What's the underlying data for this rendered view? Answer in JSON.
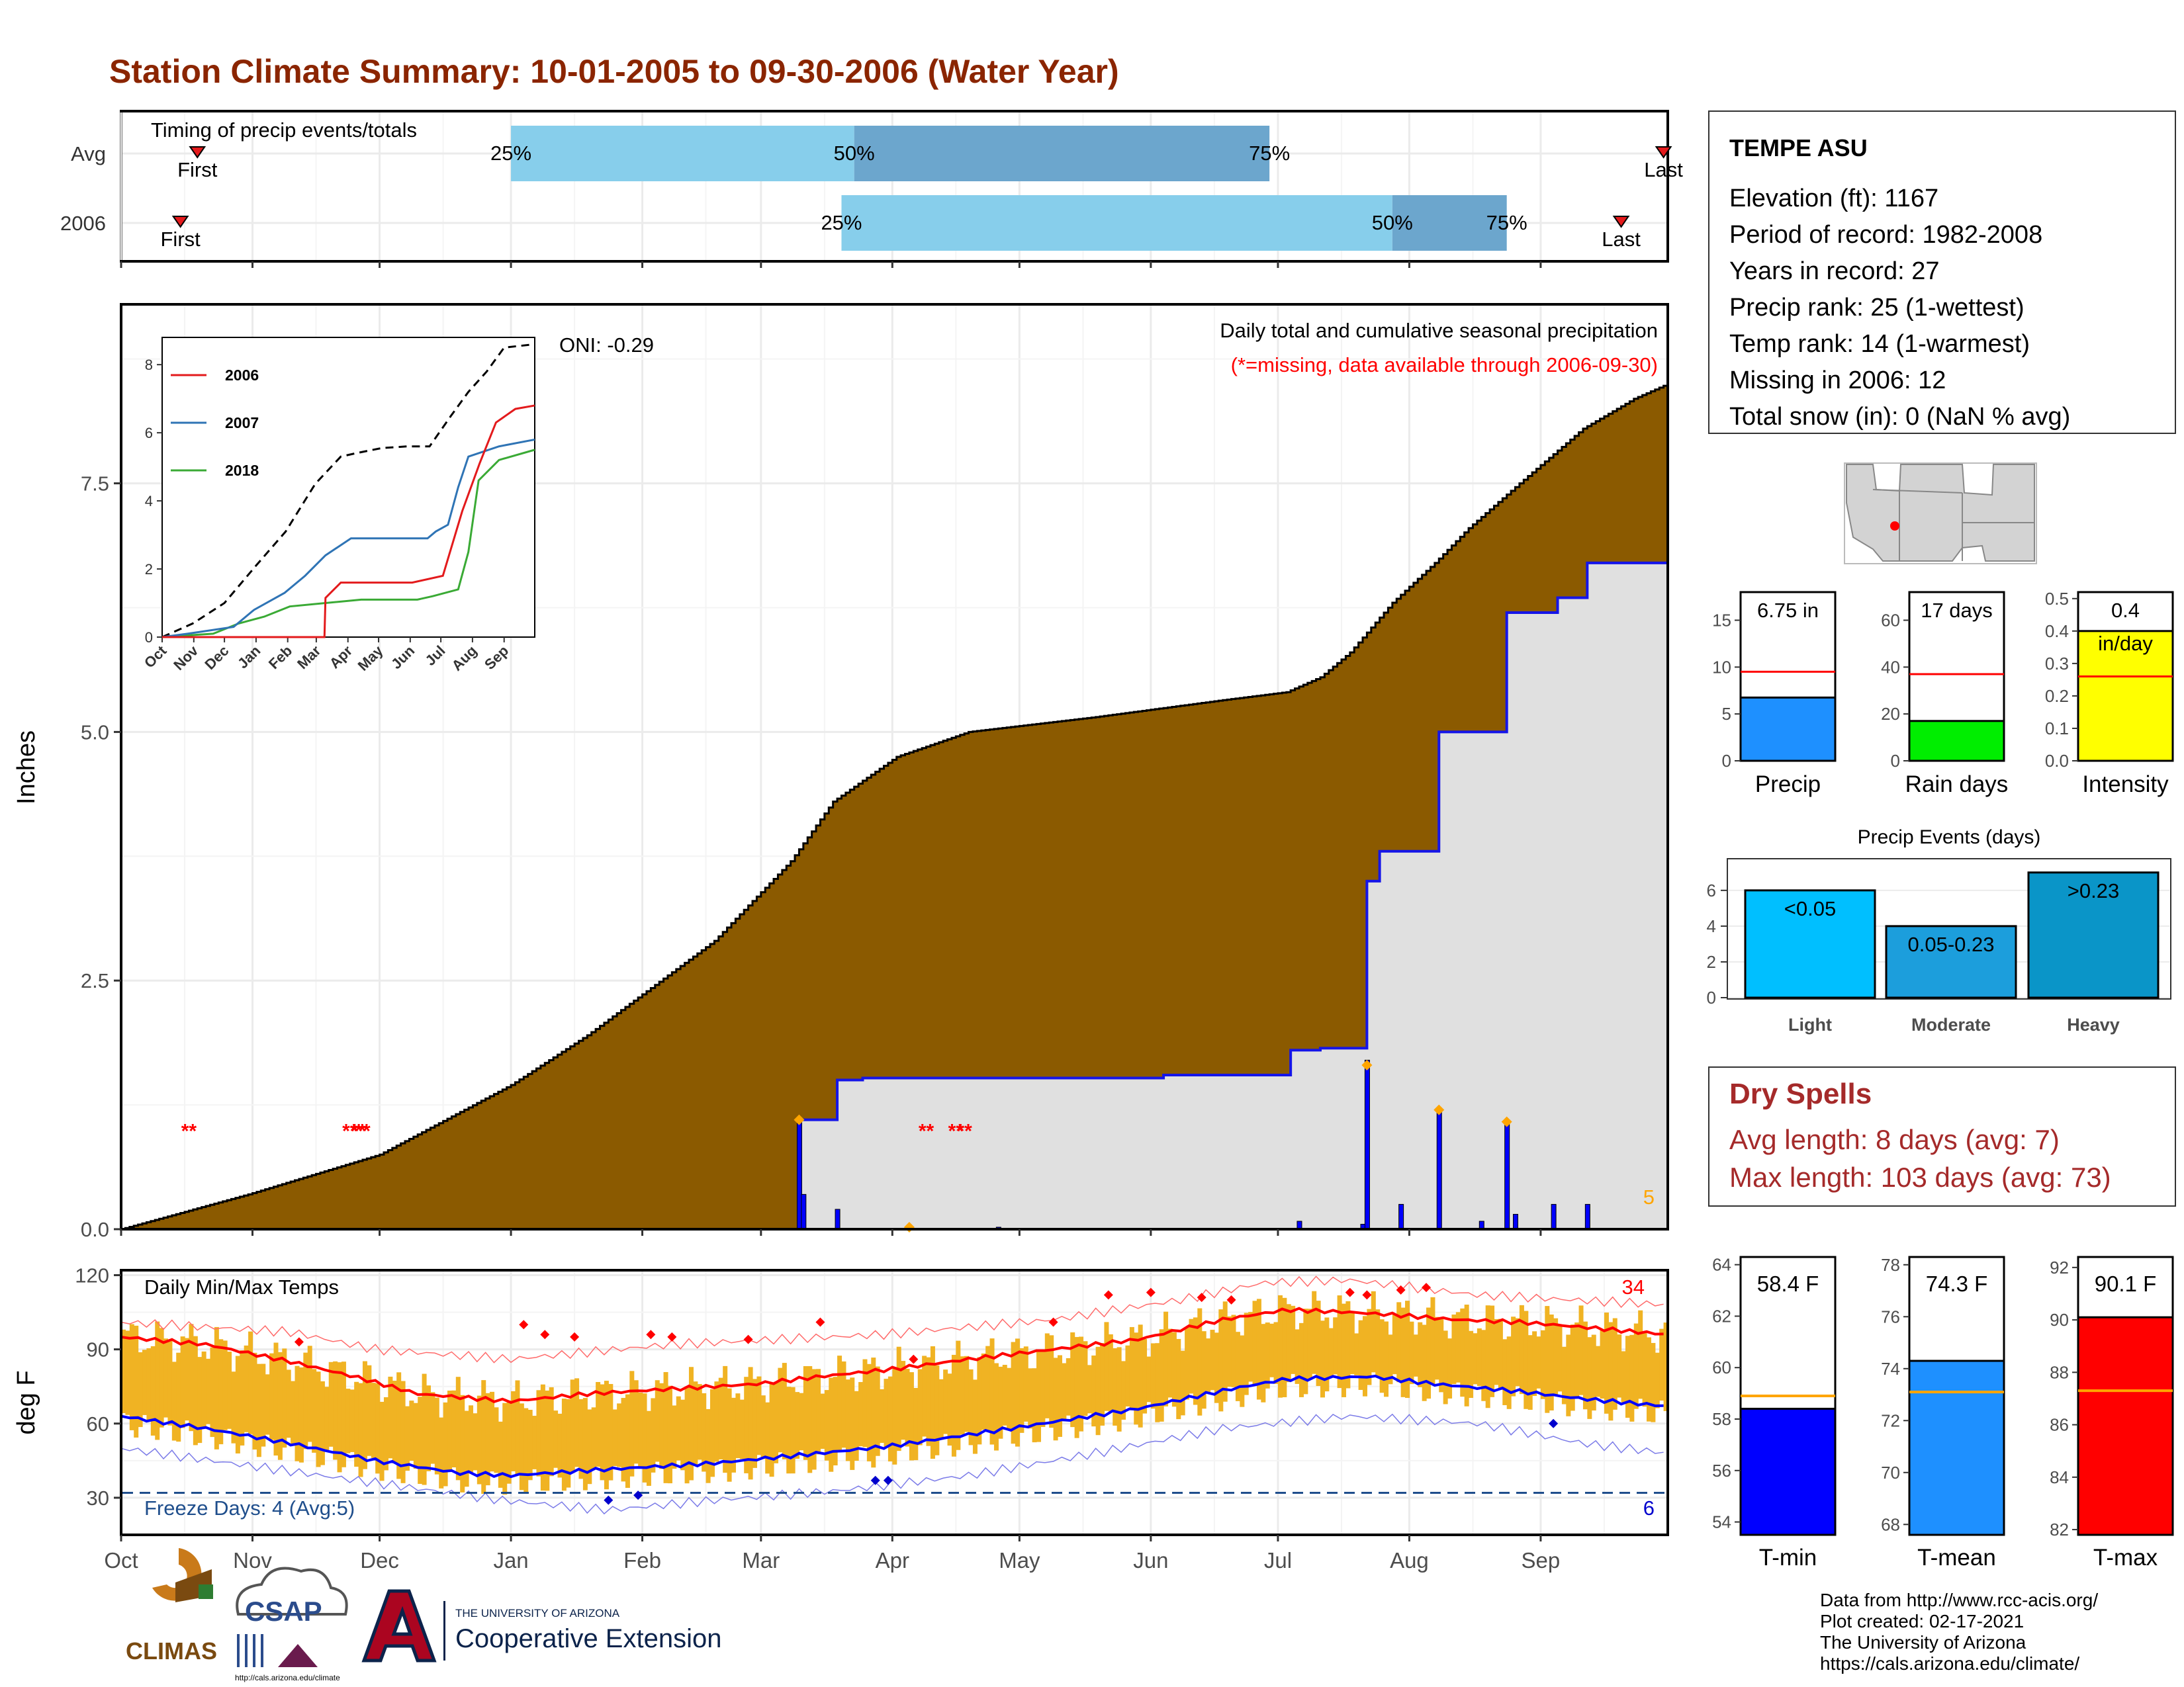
{
  "title": "Station Climate Summary: 10-01-2005 to 09-30-2006 (Water Year)",
  "colors": {
    "title": "#8B2500",
    "cumulative": "#8B5A00",
    "avg_fill": "#E0E0E0",
    "avg_line": "#1515E8",
    "warm": "#F0B323",
    "dry": "#A52A2A",
    "oni": "#000000"
  },
  "months": [
    "Oct",
    "Nov",
    "Dec",
    "Jan",
    "Feb",
    "Mar",
    "Apr",
    "May",
    "Jun",
    "Jul",
    "Aug",
    "Sep"
  ],
  "timing": {
    "title": "Timing of precip events/totals",
    "rows": [
      {
        "label": "Avg",
        "first_day": 18,
        "p25_day": 92,
        "p50_day": 173,
        "p75_day": 271,
        "last_day": 364,
        "first_label": "First",
        "last_label": "Last",
        "p25_label": "25%",
        "p50_label": "50%",
        "p75_label": "75%"
      },
      {
        "label": "2006",
        "first_day": 14,
        "p25_day": 170,
        "p50_day": 300,
        "p75_day": 327,
        "last_day": 354,
        "first_label": "First",
        "last_label": "Last",
        "p25_label": "25%",
        "p50_label": "50%",
        "p75_label": "75%"
      }
    ]
  },
  "station": {
    "name": "TEMPE ASU",
    "lines": [
      "Elevation (ft): 1167",
      "Period of record: 1982-2008",
      "Years in record: 27",
      "Precip rank: 25 (1-wettest)",
      "Temp rank: 14 (1-warmest)",
      "Missing in 2006: 12",
      "Total snow (in): 0 (NaN % avg)"
    ]
  },
  "precip": {
    "ylabel": "Inches",
    "header": "Daily total and cumulative seasonal precipitation",
    "missing_note": "(*=missing, data available through 2006-09-30)",
    "oni": "ONI: -0.29",
    "corner_count": "5",
    "ylim": [
      0,
      9.3
    ],
    "yticks": [
      "0.0",
      "2.5",
      "5.0",
      "7.5"
    ],
    "avg_cumulative": [
      [
        0,
        0.0
      ],
      [
        30,
        0.35
      ],
      [
        61,
        0.75
      ],
      [
        92,
        1.45
      ],
      [
        110,
        1.95
      ],
      [
        140,
        2.9
      ],
      [
        158,
        3.7
      ],
      [
        168,
        4.3
      ],
      [
        183,
        4.75
      ],
      [
        200,
        5.0
      ],
      [
        230,
        5.15
      ],
      [
        260,
        5.32
      ],
      [
        275,
        5.4
      ],
      [
        283,
        5.55
      ],
      [
        290,
        5.8
      ],
      [
        300,
        6.3
      ],
      [
        310,
        6.7
      ],
      [
        318,
        7.05
      ],
      [
        330,
        7.5
      ],
      [
        345,
        8.05
      ],
      [
        357,
        8.35
      ],
      [
        365,
        8.5
      ]
    ],
    "cum_2006": [
      [
        0,
        0
      ],
      [
        159,
        0
      ],
      [
        160,
        1.1
      ],
      [
        169,
        1.5
      ],
      [
        175,
        1.52
      ],
      [
        245,
        1.52
      ],
      [
        246,
        1.55
      ],
      [
        275,
        1.55
      ],
      [
        276,
        1.8
      ],
      [
        282,
        1.8
      ],
      [
        283,
        1.82
      ],
      [
        293,
        1.82
      ],
      [
        294,
        3.5
      ],
      [
        297,
        3.8
      ],
      [
        310,
        3.8
      ],
      [
        311,
        5.0
      ],
      [
        326,
        5.0
      ],
      [
        327,
        6.2
      ],
      [
        338,
        6.2
      ],
      [
        339,
        6.35
      ],
      [
        345,
        6.35
      ],
      [
        346,
        6.7
      ],
      [
        365,
        6.7
      ]
    ],
    "daily_bars": [
      [
        160,
        1.1
      ],
      [
        161,
        0.35
      ],
      [
        169,
        0.2
      ],
      [
        207,
        0.02
      ],
      [
        278,
        0.08
      ],
      [
        293,
        0.05
      ],
      [
        294,
        1.7
      ],
      [
        302,
        0.25
      ],
      [
        311,
        1.2
      ],
      [
        321,
        0.08
      ],
      [
        327,
        1.1
      ],
      [
        329,
        0.15
      ],
      [
        338,
        0.25
      ],
      [
        346,
        0.25
      ]
    ],
    "event_markers": [
      [
        160,
        1.1
      ],
      [
        186,
        0.02
      ],
      [
        294,
        1.65
      ],
      [
        311,
        1.2
      ],
      [
        327,
        1.08
      ]
    ],
    "missing_marks": [
      [
        16,
        1.0
      ],
      [
        54,
        1.0
      ],
      [
        56,
        1.0
      ],
      [
        57,
        1.0
      ],
      [
        190,
        1.0
      ],
      [
        197,
        1.0
      ],
      [
        199,
        1.0
      ]
    ]
  },
  "inset": {
    "yticks": [
      "0",
      "2",
      "4",
      "6",
      "8"
    ],
    "xticks": [
      "Oct",
      "Nov",
      "Dec",
      "Jan",
      "Feb",
      "Mar",
      "Apr",
      "May",
      "Jun",
      "Jul",
      "Aug",
      "Sep"
    ],
    "legend": [
      "2006",
      "2007",
      "2018"
    ],
    "colors": [
      "#E31A1C",
      "#2F74B5",
      "#3AAA35"
    ],
    "series": {
      "avg": [
        [
          0,
          0
        ],
        [
          30,
          0.4
        ],
        [
          61,
          1.0
        ],
        [
          92,
          2.1
        ],
        [
          121,
          3.1
        ],
        [
          150,
          4.5
        ],
        [
          175,
          5.3
        ],
        [
          190,
          5.4
        ],
        [
          215,
          5.55
        ],
        [
          240,
          5.6
        ],
        [
          262,
          5.6
        ],
        [
          283,
          6.5
        ],
        [
          300,
          7.2
        ],
        [
          318,
          7.8
        ],
        [
          335,
          8.5
        ],
        [
          365,
          8.6
        ]
      ],
      "2006": [
        [
          0,
          0
        ],
        [
          159,
          0
        ],
        [
          160,
          1.15
        ],
        [
          175,
          1.6
        ],
        [
          245,
          1.6
        ],
        [
          275,
          1.8
        ],
        [
          294,
          3.7
        ],
        [
          311,
          5.1
        ],
        [
          327,
          6.3
        ],
        [
          346,
          6.7
        ],
        [
          365,
          6.8
        ]
      ],
      "2007": [
        [
          0,
          0
        ],
        [
          25,
          0.1
        ],
        [
          70,
          0.3
        ],
        [
          90,
          0.8
        ],
        [
          120,
          1.3
        ],
        [
          140,
          1.8
        ],
        [
          160,
          2.4
        ],
        [
          185,
          2.9
        ],
        [
          260,
          2.9
        ],
        [
          268,
          3.1
        ],
        [
          280,
          3.3
        ],
        [
          290,
          4.4
        ],
        [
          300,
          5.3
        ],
        [
          330,
          5.6
        ],
        [
          365,
          5.8
        ]
      ],
      "2018": [
        [
          0,
          0
        ],
        [
          50,
          0.1
        ],
        [
          75,
          0.4
        ],
        [
          100,
          0.6
        ],
        [
          125,
          0.9
        ],
        [
          160,
          1.0
        ],
        [
          195,
          1.1
        ],
        [
          250,
          1.1
        ],
        [
          265,
          1.2
        ],
        [
          290,
          1.4
        ],
        [
          300,
          2.5
        ],
        [
          310,
          4.6
        ],
        [
          330,
          5.2
        ],
        [
          365,
          5.5
        ]
      ]
    }
  },
  "temps": {
    "title": "Daily Min/Max Temps",
    "ylabel": "deg F",
    "ylim": [
      15,
      122
    ],
    "yticks": [
      "30",
      "60",
      "90",
      "120"
    ],
    "count_hot": "34",
    "count_cold": "6",
    "freeze_text": "Freeze Days: 4 (Avg:5)",
    "freeze_line": 32,
    "avg_max": [
      [
        0,
        95
      ],
      [
        20,
        92
      ],
      [
        40,
        85
      ],
      [
        55,
        79
      ],
      [
        70,
        72
      ],
      [
        92,
        69
      ],
      [
        110,
        72
      ],
      [
        130,
        74
      ],
      [
        150,
        76
      ],
      [
        165,
        79
      ],
      [
        182,
        82
      ],
      [
        200,
        86
      ],
      [
        220,
        90
      ],
      [
        240,
        94
      ],
      [
        260,
        102
      ],
      [
        275,
        106
      ],
      [
        290,
        105
      ],
      [
        300,
        104
      ],
      [
        315,
        102
      ],
      [
        330,
        101
      ],
      [
        345,
        99
      ],
      [
        358,
        97
      ],
      [
        365,
        96
      ]
    ],
    "avg_min": [
      [
        0,
        63
      ],
      [
        20,
        58
      ],
      [
        40,
        52
      ],
      [
        60,
        45
      ],
      [
        80,
        40
      ],
      [
        92,
        39
      ],
      [
        110,
        41
      ],
      [
        140,
        44
      ],
      [
        165,
        48
      ],
      [
        182,
        51
      ],
      [
        210,
        58
      ],
      [
        240,
        66
      ],
      [
        262,
        74
      ],
      [
        275,
        78
      ],
      [
        295,
        79
      ],
      [
        310,
        76
      ],
      [
        330,
        73
      ],
      [
        345,
        70
      ],
      [
        365,
        67
      ]
    ],
    "rec_max": [
      [
        0,
        101
      ],
      [
        40,
        97
      ],
      [
        60,
        90
      ],
      [
        92,
        86
      ],
      [
        130,
        92
      ],
      [
        180,
        96
      ],
      [
        220,
        102
      ],
      [
        250,
        110
      ],
      [
        270,
        117
      ],
      [
        290,
        118
      ],
      [
        320,
        112
      ],
      [
        365,
        108
      ]
    ],
    "rec_min": [
      [
        0,
        50
      ],
      [
        30,
        43
      ],
      [
        60,
        36
      ],
      [
        90,
        29
      ],
      [
        115,
        25
      ],
      [
        140,
        29
      ],
      [
        170,
        33
      ],
      [
        200,
        39
      ],
      [
        230,
        48
      ],
      [
        260,
        58
      ],
      [
        290,
        63
      ],
      [
        320,
        60
      ],
      [
        345,
        52
      ],
      [
        365,
        48
      ]
    ]
  },
  "summary_bars": {
    "precip": {
      "value_label": "6.75 in",
      "value": 6.75,
      "avg": 9.5,
      "box": 18,
      "ymax": 18,
      "yticks": [
        0,
        5,
        10,
        15
      ],
      "label": "Precip",
      "color": "#1E90FF"
    },
    "raindays": {
      "value_label": "17 days",
      "value": 17,
      "avg": 37,
      "box": 72,
      "ymax": 72,
      "yticks": [
        0,
        20,
        40,
        60
      ],
      "label": "Rain days",
      "color": "#00EE00"
    },
    "intensity": {
      "value_label": "0.4",
      "value_label2": "in/day",
      "value": 0.4,
      "avg": 0.26,
      "box": 0.52,
      "ymax": 0.52,
      "yticks": [
        "0.0",
        "0.1",
        "0.2",
        "0.3",
        "0.4",
        "0.5"
      ],
      "label": "Intensity",
      "color": "#FFFF00"
    }
  },
  "events": {
    "title": "Precip Events (days)",
    "categories": [
      "Light",
      "Moderate",
      "Heavy"
    ],
    "values": [
      6,
      4,
      7
    ],
    "bar_labels": [
      "<0.05",
      "0.05-0.23",
      ">0.23"
    ],
    "colors": [
      "#00BFFF",
      "#1C9EDC",
      "#0A95C8"
    ],
    "yticks": [
      0,
      2,
      4,
      6
    ]
  },
  "dry": {
    "title": "Dry Spells",
    "avg_line": "Avg length: 8 days (avg: 7)",
    "max_line": "Max length: 103 days (avg: 73)"
  },
  "temp_bars": {
    "tmin": {
      "value_label": "58.4 F",
      "value": 58.4,
      "avg": 58.9,
      "ylim": [
        53.5,
        64.3
      ],
      "yticks": [
        54,
        56,
        58,
        60,
        62,
        64
      ],
      "label": "T-min",
      "color": "#0000FF"
    },
    "tmean": {
      "value_label": "74.3 F",
      "value": 74.3,
      "avg": 73.1,
      "ylim": [
        67.6,
        78.3
      ],
      "yticks": [
        68,
        70,
        72,
        74,
        76,
        78
      ],
      "label": "T-mean",
      "color": "#1E90FF"
    },
    "tmax": {
      "value_label": "90.1 F",
      "value": 90.1,
      "avg": 87.3,
      "ylim": [
        81.8,
        92.4
      ],
      "yticks": [
        82,
        84,
        86,
        88,
        90,
        92
      ],
      "label": "T-max",
      "color": "#FF0000"
    }
  },
  "footer": {
    "lines": [
      "Data from http://www.rcc-acis.org/",
      "Plot created: 02-17-2021",
      "The University of Arizona",
      "https://cals.arizona.edu/climate/"
    ],
    "logo_climas": "CLIMAS",
    "logo_csap": "CSAP",
    "logo_csap_url": "http://cals.arizona.edu/climate",
    "logo_ua_small": "THE UNIVERSITY OF ARIZONA",
    "logo_ua_big": "Cooperative Extension"
  }
}
